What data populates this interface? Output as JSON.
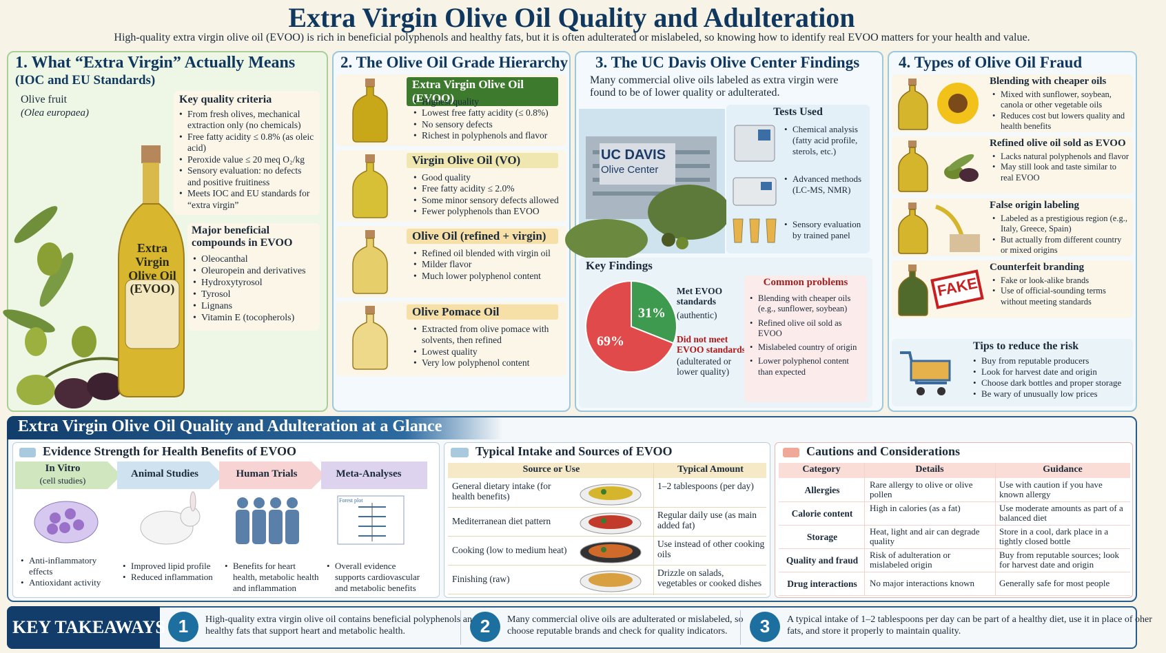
{
  "title": "Extra Virgin Olive Oil Quality and Adulteration",
  "subtitle": "High-quality extra virgin olive oil (EVOO) is rich in beneficial polyphenols and healthy fats, but it is often adulterated or mislabeled, so knowing how to identify real EVOO matters for your health and value.",
  "s1": {
    "title": "1. What “Extra Virgin” Actually Means",
    "sub": "(IOC and EU Standards)",
    "fruit": "Olive fruit",
    "fruit_latin": "(Olea europaea)",
    "bottle": "Extra Virgin Olive Oil (EVOO)",
    "kq_title": "Key quality criteria",
    "kq": [
      "From fresh olives, mechanical extraction only (no chemicals)",
      "Free fatty acidity ≤ 0.8% (as oleic acid)",
      "Peroxide value ≤ 20 meq O₂/kg",
      "Sensory evaluation: no defects and positive fruitiness",
      "Meets IOC and EU standards for “extra virgin”"
    ],
    "mc_title": "Major beneficial compounds in EVOO",
    "mc": [
      "Oleocanthal",
      "Oleuropein and derivatives",
      "Hydroxytyrosol",
      "Tyrosol",
      "Lignans",
      "Vitamin E (tocopherols)"
    ]
  },
  "s2": {
    "title": "2. The Olive Oil Grade Hierarchy",
    "grades": [
      {
        "name": "Extra Virgin Olive Oil (EVOO)",
        "items": [
          "Highest quality",
          "Lowest free fatty acidity (≤ 0.8%)",
          "No sensory defects",
          "Richest in polyphenols and flavor"
        ]
      },
      {
        "name": "Virgin Olive Oil (VO)",
        "items": [
          "Good quality",
          "Free fatty acidity ≤ 2.0%",
          "Some minor sensory defects allowed",
          "Fewer polyphenols than EVOO"
        ]
      },
      {
        "name": "Olive Oil (refined + virgin)",
        "items": [
          "Refined oil blended with virgin oil",
          "Milder flavor",
          "Much lower polyphenol content"
        ]
      },
      {
        "name": "Olive Pomace Oil",
        "items": [
          "Extracted from olive pomace with solvents, then refined",
          "Lowest quality",
          "Very low polyphenol content"
        ]
      }
    ]
  },
  "s3": {
    "title": "3. The UC Davis Olive Center Findings",
    "intro": "Many commercial olive oils labeled as extra virgin were found to be of lower quality or adulterated.",
    "sign1": "UC DAVIS",
    "sign2": "Olive Center",
    "tests_title": "Tests Used",
    "tests": [
      "Chemical analysis (fatty acid profile, sterols, etc.)",
      "Advanced methods (LC-MS, NMR)",
      "Sensory evaluation by trained panel"
    ],
    "kf_title": "Key Findings",
    "met_label": "Met EVOO standards",
    "met_sub": "(authentic)",
    "not_label": "Did not meet EVOO standards",
    "not_sub": "(adulterated or lower quality)",
    "cp_title": "Common problems",
    "cp": [
      "Blending with cheaper oils (e.g., sunflower, soybean)",
      "Refined olive oil sold as EVOO",
      "Mislabeled country of origin",
      "Lower polyphenol content than expected"
    ]
  },
  "chart_data": {
    "type": "pie",
    "categories": [
      "Met EVOO standards (authentic)",
      "Did not meet EVOO standards (adulterated or lower quality)"
    ],
    "values": [
      31,
      69
    ],
    "labels": [
      "31%",
      "69%"
    ],
    "colors": [
      "#3e9a4e",
      "#e04a4a"
    ]
  },
  "s4": {
    "title": "4. Types of Olive Oil Fraud",
    "types": [
      {
        "name": "Blending with cheaper oils",
        "items": [
          "Mixed with sunflower, soybean, canola or other vegetable oils",
          "Reduces cost but lowers quality and health benefits"
        ]
      },
      {
        "name": "Refined olive oil sold as EVOO",
        "items": [
          "Lacks natural polyphenols and flavor",
          "May still look and taste similar to real EVOO"
        ]
      },
      {
        "name": "False origin labeling",
        "items": [
          "Labeled as a prestigious region (e.g., Italy, Greece, Spain)",
          "But actually from different country or mixed origins"
        ]
      },
      {
        "name": "Counterfeit branding",
        "items": [
          "Fake or look-alike brands",
          "Use of official-sounding terms without meeting standards"
        ]
      }
    ],
    "fake_stamp": "FAKE",
    "tips_title": "Tips to reduce the risk",
    "tips": [
      "Buy from reputable producers",
      "Look for harvest date and origin",
      "Choose dark bottles and proper storage",
      "Be wary of unusually low prices"
    ]
  },
  "glance": {
    "title": "Extra Virgin Olive Oil Quality and Adulteration at a Glance"
  },
  "evidence": {
    "title": "Evidence Strength for Health Benefits of EVOO",
    "steps": [
      {
        "name": "In Vitro",
        "sub": "(cell studies)",
        "items": [
          "Anti-inflammatory effects",
          "Antioxidant activity"
        ]
      },
      {
        "name": "Animal Studies",
        "sub": "",
        "items": [
          "Improved lipid profile",
          "Reduced inflammation"
        ]
      },
      {
        "name": "Human Trials",
        "sub": "",
        "items": [
          "Benefits for heart health, metabolic health and inflammation"
        ]
      },
      {
        "name": "Meta-Analyses",
        "sub": "",
        "items": [
          "Overall evidence supports cardiovascular and metabolic benefits"
        ]
      }
    ],
    "ma_chart_title": "Forest plot"
  },
  "intake": {
    "title": "Typical Intake and Sources of EVOO",
    "col1": "Source or Use",
    "col2": "Typical Amount",
    "rows": [
      {
        "source": "General dietary intake (for health benefits)",
        "amount": "1–2 tablespoons (per day)"
      },
      {
        "source": "Mediterranean diet pattern",
        "amount": "Regular daily use (as main added fat)"
      },
      {
        "source": "Cooking (low to medium heat)",
        "amount": "Use instead of other cooking oils"
      },
      {
        "source": "Finishing (raw)",
        "amount": "Drizzle on salads, vegetables or cooked dishes"
      }
    ]
  },
  "cautions": {
    "title": "Cautions and Considerations",
    "headers": [
      "Category",
      "Details",
      "Guidance"
    ],
    "rows": [
      {
        "cat": "Allergies",
        "details": "Rare allergy to olive or olive pollen",
        "guide": "Use with caution if you have known allergy"
      },
      {
        "cat": "Calorie content",
        "details": "High in calories (as a fat)",
        "guide": "Use moderate amounts as part of a balanced diet"
      },
      {
        "cat": "Storage",
        "details": "Heat, light and air can degrade quality",
        "guide": "Store in a cool, dark place in a tightly closed bottle"
      },
      {
        "cat": "Quality and fraud",
        "details": "Risk of adulteration or mislabeled origin",
        "guide": "Buy from reputable sources; look for harvest date and origin"
      },
      {
        "cat": "Drug interactions",
        "details": "No major interactions known",
        "guide": "Generally safe for most people"
      }
    ]
  },
  "takeaways": {
    "label": "KEY TAKEAWAYS",
    "items": [
      {
        "num": "1",
        "text": "High-quality extra virgin olive oil contains beneficial polyphenols and healthy fats that support heart and metabolic health."
      },
      {
        "num": "2",
        "text": "Many commercial olive oils are adulterated or mislabeled, so choose reputable brands and check for quality indicators."
      },
      {
        "num": "3",
        "text": "A typical intake of 1–2 tablespoons per day can be part of a healthy diet, use it in place of oher fats, and store it properly to maintain quality."
      }
    ]
  }
}
